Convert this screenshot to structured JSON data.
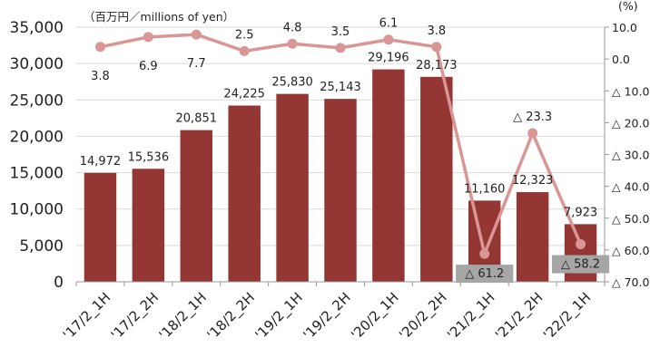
{
  "chart_data": {
    "type": "bar+line",
    "unit_label": "（百万円／millions of yen）",
    "right_unit_label": "(%)",
    "categories": [
      "'17/2_1H",
      "'17/2_2H",
      "'18/2_1H",
      "'18/2_2H",
      "'19/2_1H",
      "'19/2_2H",
      "'20/2_1H",
      "'20/2_2H",
      "'21/2_1H",
      "'21/2_2H",
      "'22/2_1H"
    ],
    "bar_series": {
      "values": [
        14972,
        15536,
        20851,
        24225,
        25830,
        25143,
        29196,
        28173,
        11160,
        12323,
        7923
      ],
      "labels": [
        "14,972",
        "15,536",
        "20,851",
        "24,225",
        "25,830",
        "25,143",
        "29,196",
        "28,173",
        "11,160",
        "12,323",
        "7,923"
      ],
      "color": "#943634"
    },
    "line_series": {
      "values": [
        3.8,
        6.9,
        7.7,
        2.5,
        4.8,
        3.5,
        6.1,
        3.8,
        -61.2,
        -23.3,
        -58.2
      ],
      "labels": [
        "3.8",
        "6.9",
        "7.7",
        "2.5",
        "4.8",
        "3.5",
        "6.1",
        "3.8",
        "△ 61.2",
        "△ 23.3",
        "△ 58.2"
      ],
      "color": "#d99694"
    },
    "left_axis": {
      "ylim": [
        0,
        35000
      ],
      "ticks": [
        0,
        5000,
        10000,
        15000,
        20000,
        25000,
        30000,
        35000
      ],
      "tick_labels": [
        "0",
        "5,000",
        "10,000",
        "15,000",
        "20,000",
        "25,000",
        "30,000",
        "35,000"
      ]
    },
    "right_axis": {
      "ylim": [
        -70,
        10
      ],
      "ticks": [
        10,
        0,
        -10,
        -20,
        -30,
        -40,
        -50,
        -60,
        -70
      ],
      "tick_labels": [
        "10.0",
        "0.0",
        "△ 10.0",
        "△ 20.0",
        "△ 30.0",
        "△ 40.0",
        "△ 50.0",
        "△ 60.0",
        "△ 70.0"
      ]
    },
    "grid": true,
    "highlighted_labels": [
      "△ 61.2",
      "△ 58.2"
    ]
  }
}
